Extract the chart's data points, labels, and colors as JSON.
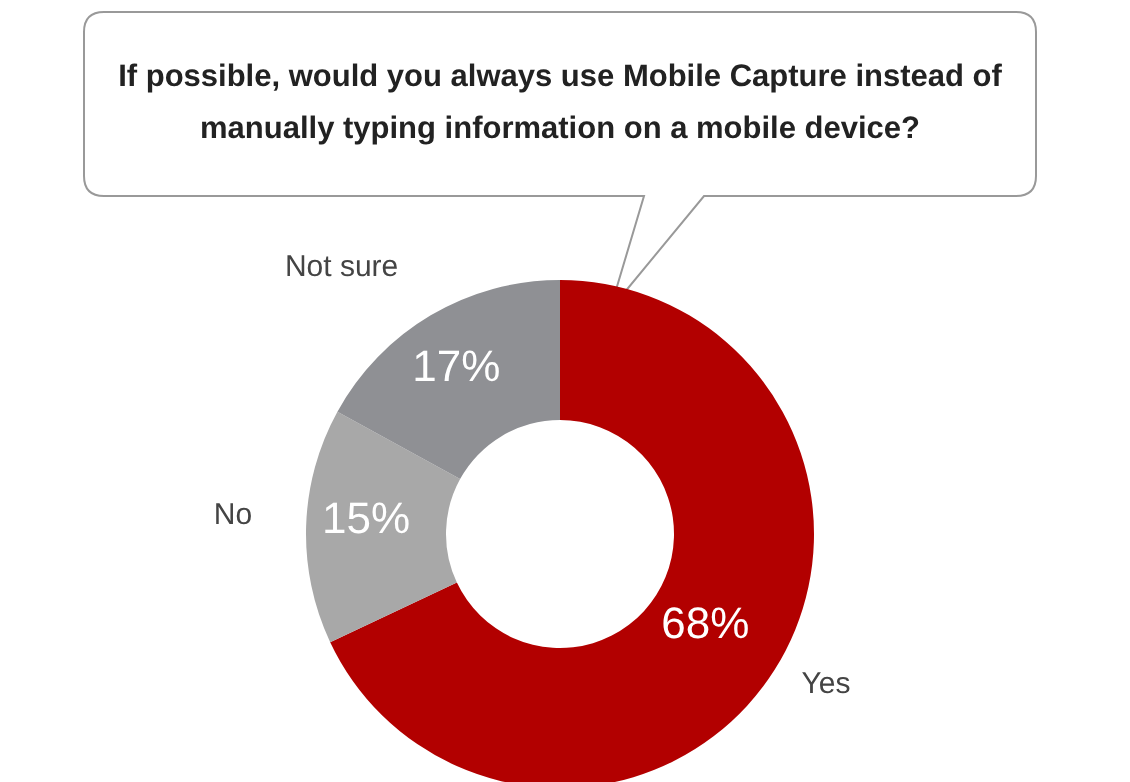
{
  "chart_data": {
    "type": "donut",
    "title": "If possible, would you always use Mobile Capture instead of manually typing information on a mobile device?",
    "categories": [
      "Yes",
      "No",
      "Not sure"
    ],
    "values": [
      68,
      15,
      17
    ],
    "colors": [
      "#b20000",
      "#a8a8a8",
      "#8f9094"
    ],
    "value_labels": [
      "68%",
      "15%",
      "17%"
    ],
    "legend": false
  }
}
